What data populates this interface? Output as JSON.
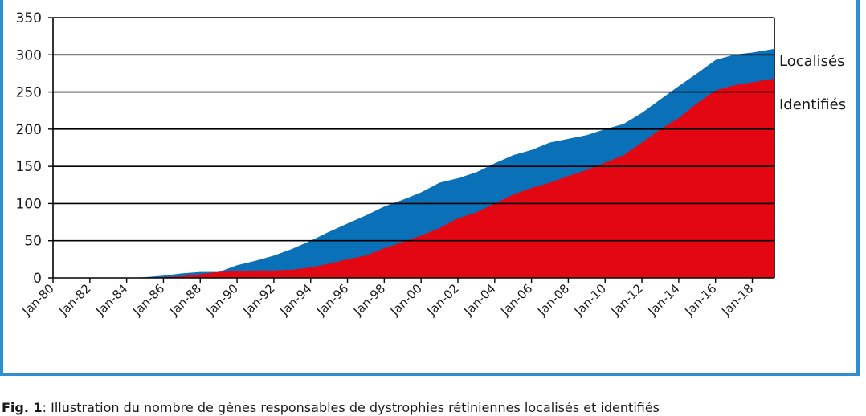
{
  "chart_data": {
    "type": "area",
    "stacked": false,
    "ylim": [
      0,
      350
    ],
    "yticks": [
      0,
      50,
      100,
      150,
      200,
      250,
      300,
      350
    ],
    "xlim": [
      1980,
      2019.2
    ],
    "xtick_labels": [
      "Jan-80",
      "Jan-82",
      "Jan-84",
      "Jan-86",
      "Jan-88",
      "Jan-90",
      "Jan-92",
      "Jan-94",
      "Jan-96",
      "Jan-98",
      "Jan-00",
      "Jan-02",
      "Jan-04",
      "Jan-06",
      "Jan-08",
      "Jan-10",
      "Jan-12",
      "Jan-14",
      "Jan-16",
      "Jan-18"
    ],
    "xtick_years": [
      1980,
      1982,
      1984,
      1986,
      1988,
      1990,
      1992,
      1994,
      1996,
      1998,
      2000,
      2002,
      2004,
      2006,
      2008,
      2010,
      2012,
      2014,
      2016,
      2018
    ],
    "grid": "horizontal",
    "series": [
      {
        "name": "Localisés",
        "color": "#0a70b8",
        "x": [
          1980,
          1984,
          1985,
          1986,
          1987,
          1988,
          1989,
          1990,
          1991,
          1992,
          1993,
          1994,
          1995,
          1996,
          1997,
          1998,
          1999,
          2000,
          2001,
          2002,
          2003,
          2004,
          2005,
          2006,
          2007,
          2008,
          2009,
          2010,
          2011,
          2012,
          2013,
          2014,
          2015,
          2016,
          2017,
          2018,
          2019.2
        ],
        "y": [
          0,
          0,
          1,
          3,
          6,
          8,
          8,
          17,
          23,
          30,
          39,
          50,
          62,
          73,
          84,
          96,
          105,
          115,
          128,
          134,
          142,
          154,
          165,
          172,
          182,
          187,
          192,
          200,
          207,
          222,
          240,
          258,
          275,
          293,
          300,
          303,
          308
        ]
      },
      {
        "name": "Identifiés",
        "color": "#e30613",
        "x": [
          1980,
          1985,
          1987,
          1988,
          1989,
          1990,
          1991,
          1992,
          1993,
          1994,
          1995,
          1996,
          1997,
          1998,
          1999,
          2000,
          2001,
          2002,
          2003,
          2004,
          2005,
          2006,
          2007,
          2008,
          2009,
          2010,
          2011,
          2012,
          2013,
          2014,
          2015,
          2016,
          2017,
          2018,
          2019.2
        ],
        "y": [
          0,
          0,
          2,
          5,
          8,
          9,
          10,
          10,
          11,
          14,
          19,
          25,
          30,
          40,
          48,
          57,
          67,
          80,
          88,
          100,
          112,
          121,
          128,
          137,
          145,
          155,
          165,
          182,
          200,
          215,
          235,
          252,
          259,
          263,
          268
        ]
      }
    ]
  },
  "caption": {
    "label": "Fig. 1",
    "text": ": Illustration du nombre de gènes responsables de dystrophies rétiniennes localisés et identifiés"
  }
}
